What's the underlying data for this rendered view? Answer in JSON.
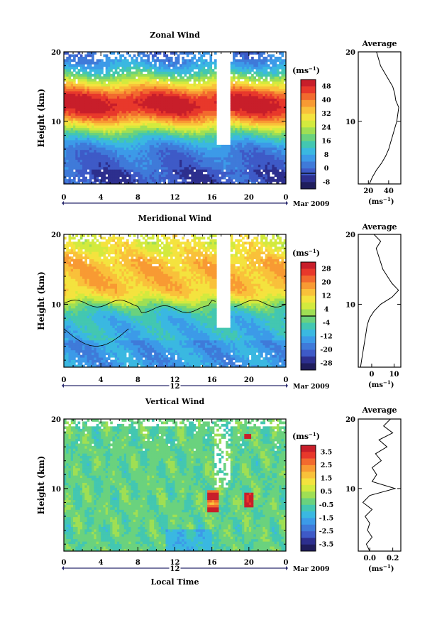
{
  "chart_data": [
    {
      "type": "heatmap",
      "title": "Zonal Wind",
      "ylabel": "Height (km)",
      "y_ticks": [
        "20",
        "10"
      ],
      "x_ticks": [
        "0",
        "4",
        "8",
        "12",
        "16",
        "20",
        "0"
      ],
      "date_marker": "",
      "date_label": "Mar 2009",
      "xlim": [
        0,
        24
      ],
      "ylim": [
        1,
        20
      ],
      "colorbar": {
        "unit_base": "(ms",
        "unit_exp": "−1",
        "unit_close": ")",
        "ticks": [
          "48",
          "40",
          "32",
          "24",
          "16",
          "8",
          "0",
          "-8"
        ],
        "range": [
          -8,
          48
        ],
        "colors": [
          "#c81e2a",
          "#e8382b",
          "#f26a2e",
          "#f89a33",
          "#f9c13a",
          "#f4e33e",
          "#d3ea3e",
          "#9fdf54",
          "#6ad27e",
          "#43c7b1",
          "#3ab8e1",
          "#3c9ae8",
          "#3f7ad9",
          "#3e5ac7",
          "#2d2f8e",
          "#1f1d5c"
        ],
        "zero_line_value": 0
      },
      "profile": {
        "title": "Average",
        "x_ticks": [
          "20",
          "40"
        ],
        "xlim": [
          10,
          52
        ],
        "xtick_values": [
          20,
          40
        ],
        "xlabel_base": "(ms",
        "xlabel_exp": "−1",
        "xlabel_close": ")",
        "points": [
          [
            21,
            1
          ],
          [
            24,
            2
          ],
          [
            28,
            3
          ],
          [
            33,
            4
          ],
          [
            37,
            5
          ],
          [
            40,
            6
          ],
          [
            42,
            7
          ],
          [
            44,
            8
          ],
          [
            46,
            9
          ],
          [
            48,
            10
          ],
          [
            49,
            11
          ],
          [
            50,
            12
          ],
          [
            47,
            13
          ],
          [
            46,
            14
          ],
          [
            44,
            15
          ],
          [
            40,
            16
          ],
          [
            36,
            17
          ],
          [
            32,
            18
          ],
          [
            30,
            19
          ],
          [
            28,
            20
          ]
        ]
      }
    },
    {
      "type": "heatmap",
      "title": "Meridional Wind",
      "ylabel": "Height (km)",
      "y_ticks": [
        "20",
        "10"
      ],
      "x_ticks": [
        "0",
        "4",
        "8",
        "12",
        "16",
        "20",
        "0"
      ],
      "date_marker": "12",
      "date_label": "Mar 2009",
      "xlim": [
        0,
        24
      ],
      "ylim": [
        1,
        20
      ],
      "colorbar": {
        "unit_base": "(ms",
        "unit_exp": "−1",
        "unit_close": ")",
        "ticks": [
          "28",
          "20",
          "12",
          "4",
          "-4",
          "-12",
          "-20",
          "-28"
        ],
        "range": [
          -28,
          28
        ],
        "colors": [
          "#c81e2a",
          "#e8382b",
          "#f26a2e",
          "#f89a33",
          "#f9c13a",
          "#f4e33e",
          "#d3ea3e",
          "#9fdf54",
          "#6ad27e",
          "#43c7b1",
          "#3ab8e1",
          "#3c9ae8",
          "#3f7ad9",
          "#3e5ac7",
          "#2d2f8e",
          "#1f1d5c"
        ],
        "zero_line_value": 0
      },
      "profile": {
        "title": "Average",
        "x_ticks": [
          "0",
          "10"
        ],
        "xlim": [
          -6,
          13
        ],
        "xtick_values": [
          0,
          10
        ],
        "xlabel_base": "(ms",
        "xlabel_exp": "−1",
        "xlabel_close": ")",
        "points": [
          [
            -5,
            1
          ],
          [
            -4.5,
            2
          ],
          [
            -4,
            3
          ],
          [
            -3.5,
            4
          ],
          [
            -3,
            5
          ],
          [
            -2.5,
            6
          ],
          [
            -2,
            7
          ],
          [
            -1,
            8
          ],
          [
            1,
            9
          ],
          [
            4,
            10
          ],
          [
            9,
            11
          ],
          [
            12,
            12
          ],
          [
            9,
            13
          ],
          [
            7,
            14
          ],
          [
            5,
            15
          ],
          [
            4,
            16
          ],
          [
            3,
            17
          ],
          [
            2,
            18
          ],
          [
            4,
            19
          ],
          [
            1,
            20
          ]
        ]
      }
    },
    {
      "type": "heatmap",
      "title": "Vertical Wind",
      "ylabel": "Height (km)",
      "xlabel": "Local Time",
      "y_ticks": [
        "20",
        "10"
      ],
      "x_ticks": [
        "0",
        "4",
        "8",
        "12",
        "16",
        "20",
        "0"
      ],
      "date_marker": "12",
      "date_label": "Mar 2009",
      "xlim": [
        0,
        24
      ],
      "ylim": [
        1,
        20
      ],
      "colorbar": {
        "unit_base": "(ms",
        "unit_exp": "−1",
        "unit_close": ")",
        "ticks": [
          "3.5",
          "2.5",
          "1.5",
          "0.5",
          "-0.5",
          "-1.5",
          "-2.5",
          "-3.5"
        ],
        "range": [
          -3.5,
          3.5
        ],
        "colors": [
          "#c81e2a",
          "#e8382b",
          "#f26a2e",
          "#f89a33",
          "#f9c13a",
          "#f4e33e",
          "#d3ea3e",
          "#9fdf54",
          "#6ad27e",
          "#43c7b1",
          "#3ab8e1",
          "#3c9ae8",
          "#3f7ad9",
          "#3e5ac7",
          "#2d2f8e",
          "#1f1d5c"
        ]
      },
      "profile": {
        "title": "Average",
        "x_ticks": [
          "0.0",
          "0.2"
        ],
        "xlim": [
          -0.1,
          0.27
        ],
        "xtick_values": [
          0.0,
          0.2
        ],
        "xlabel_base": "(ms",
        "xlabel_exp": "−1",
        "xlabel_close": ")",
        "points": [
          [
            0.0,
            1
          ],
          [
            -0.03,
            2
          ],
          [
            0.02,
            3
          ],
          [
            -0.02,
            4
          ],
          [
            0.0,
            5
          ],
          [
            -0.04,
            6
          ],
          [
            0.02,
            7
          ],
          [
            -0.06,
            8
          ],
          [
            0.0,
            9
          ],
          [
            0.22,
            10
          ],
          [
            0.02,
            11
          ],
          [
            0.06,
            12
          ],
          [
            0.02,
            13
          ],
          [
            0.1,
            14
          ],
          [
            0.05,
            15
          ],
          [
            0.15,
            16
          ],
          [
            0.08,
            17
          ],
          [
            0.2,
            18
          ],
          [
            0.12,
            19
          ],
          [
            0.18,
            20
          ]
        ]
      }
    }
  ]
}
